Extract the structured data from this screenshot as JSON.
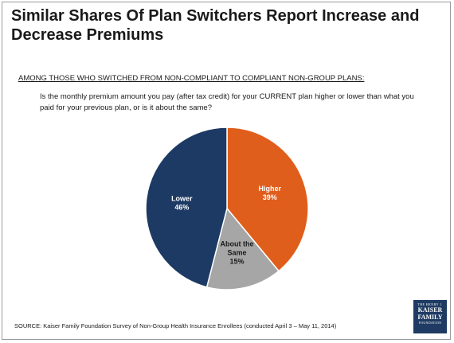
{
  "header": {
    "title": "Similar Shares Of Plan Switchers Report Increase and Decrease Premiums",
    "subtitle": "AMONG THOSE WHO SWITCHED FROM NON-COMPLIANT TO COMPLIANT NON-GROUP PLANS:",
    "question": "Is the monthly premium amount you pay (after tax credit) for your CURRENT plan higher or lower than what you paid for your previous plan, or is it about the same?"
  },
  "chart_data": {
    "type": "pie",
    "slices": [
      {
        "label": [
          "Higher"
        ],
        "value": 39,
        "value_label": "39%",
        "color": "#e05e1b",
        "text_color": "#ffffff"
      },
      {
        "label": [
          "About the",
          "Same"
        ],
        "value": 15,
        "value_label": "15%",
        "color": "#a6a6a6",
        "text_color": "#1a1a1a"
      },
      {
        "label": [
          "Lower"
        ],
        "value": 46,
        "value_label": "46%",
        "color": "#1c3a63",
        "text_color": "#ffffff"
      }
    ],
    "start": "top",
    "direction": "clockwise"
  },
  "footer": {
    "source": "SOURCE: Kaiser Family Foundation Survey of Non-Group Health Insurance Enrollees (conducted April 3 – May 11, 2014)",
    "logo_top": "THE HENRY J.",
    "logo_main_1": "KAISER",
    "logo_main_2": "FAMILY",
    "logo_bottom": "FOUNDATION"
  }
}
